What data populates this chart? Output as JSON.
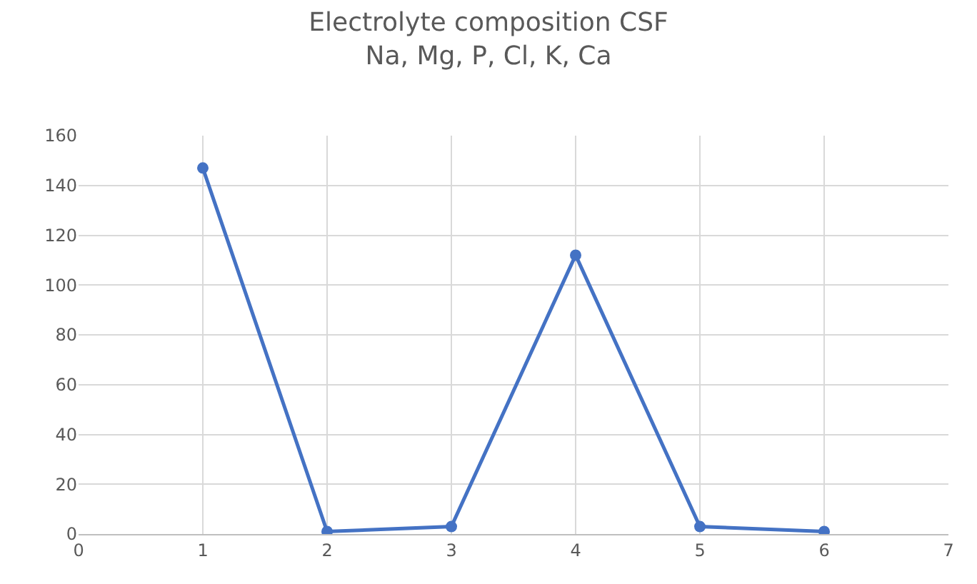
{
  "chart_data": {
    "type": "line",
    "title": "Electrolyte composition CSF",
    "subtitle": "Na, Mg, P, Cl, K, Ca",
    "x": [
      1,
      2,
      3,
      4,
      5,
      6
    ],
    "series": [
      {
        "color": "#4472c4",
        "values": [
          147,
          1,
          3,
          112,
          3,
          1
        ]
      }
    ],
    "xlim": [
      0,
      7
    ],
    "xticks": [
      0,
      1,
      2,
      3,
      4,
      5,
      6,
      7
    ],
    "ylim": [
      0,
      160
    ],
    "yticks": [
      0,
      20,
      40,
      60,
      80,
      100,
      120,
      140,
      160
    ],
    "grid": true,
    "marker": "circle",
    "line_style": "solid"
  }
}
